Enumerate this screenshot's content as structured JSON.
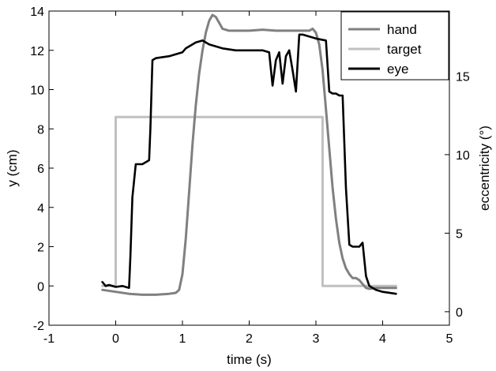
{
  "chart_data": {
    "type": "line",
    "xlabel": "time (s)",
    "ylabel": "y (cm)",
    "ylabel_right": "eccentricity (°)",
    "xlim": [
      -1,
      5
    ],
    "ylim": [
      -2,
      14
    ],
    "ylim_right": [
      -0.86,
      19.14
    ],
    "x_ticks": [
      "-1",
      "0",
      "1",
      "2",
      "3",
      "4",
      "5"
    ],
    "y_ticks": [
      "-2",
      "0",
      "2",
      "4",
      "6",
      "8",
      "10",
      "12",
      "14"
    ],
    "y_ticks_right": [
      "0",
      "5",
      "10",
      "15"
    ],
    "grid": false,
    "legend_position": "top-right",
    "series": [
      {
        "name": "hand",
        "color": "#808080",
        "axis": "left",
        "x": [
          -0.2,
          0.0,
          0.2,
          0.4,
          0.6,
          0.8,
          0.9,
          0.95,
          1.0,
          1.05,
          1.1,
          1.15,
          1.2,
          1.25,
          1.3,
          1.35,
          1.4,
          1.45,
          1.5,
          1.55,
          1.6,
          1.7,
          1.8,
          2.0,
          2.2,
          2.4,
          2.6,
          2.8,
          2.9,
          2.95,
          3.0,
          3.05,
          3.1,
          3.15,
          3.2,
          3.25,
          3.3,
          3.35,
          3.4,
          3.45,
          3.5,
          3.55,
          3.6,
          3.65,
          3.7,
          3.75,
          3.8,
          3.9,
          4.0,
          4.2
        ],
        "y": [
          -0.2,
          -0.3,
          -0.4,
          -0.45,
          -0.45,
          -0.4,
          -0.35,
          -0.2,
          0.6,
          2.4,
          4.8,
          7.2,
          9.2,
          10.8,
          12.0,
          12.9,
          13.5,
          13.8,
          13.7,
          13.4,
          13.1,
          13.0,
          13.0,
          13.0,
          13.05,
          13.0,
          13.0,
          13.0,
          13.0,
          13.1,
          12.9,
          12.3,
          11.0,
          9.0,
          7.0,
          5.0,
          3.4,
          2.2,
          1.4,
          0.9,
          0.6,
          0.4,
          0.4,
          0.3,
          0.1,
          -0.1,
          -0.15,
          -0.1,
          -0.1,
          -0.1
        ]
      },
      {
        "name": "target",
        "color": "#c0c0c0",
        "axis": "left",
        "x": [
          -0.2,
          0.0,
          0.0,
          3.1,
          3.1,
          4.2
        ],
        "y": [
          0.0,
          0.0,
          8.6,
          8.6,
          0.0,
          0.0
        ]
      },
      {
        "name": "eye",
        "color": "#000000",
        "axis": "left",
        "x": [
          -0.2,
          -0.15,
          -0.1,
          0.0,
          0.1,
          0.2,
          0.22,
          0.25,
          0.3,
          0.4,
          0.45,
          0.5,
          0.52,
          0.55,
          0.6,
          0.8,
          1.0,
          1.05,
          1.1,
          1.2,
          1.3,
          1.4,
          1.6,
          1.8,
          2.0,
          2.2,
          2.3,
          2.35,
          2.4,
          2.45,
          2.5,
          2.55,
          2.6,
          2.65,
          2.7,
          2.75,
          2.8,
          3.0,
          3.15,
          3.2,
          3.25,
          3.3,
          3.35,
          3.4,
          3.45,
          3.5,
          3.55,
          3.6,
          3.65,
          3.7,
          3.75,
          3.8,
          3.85,
          3.9,
          4.0,
          4.2
        ],
        "y": [
          0.2,
          0.0,
          0.05,
          -0.05,
          0.0,
          -0.1,
          1.5,
          4.5,
          6.2,
          6.2,
          6.3,
          6.4,
          8.0,
          11.5,
          11.6,
          11.7,
          11.9,
          12.1,
          12.2,
          12.4,
          12.5,
          12.3,
          12.1,
          12.0,
          12.0,
          12.0,
          11.9,
          10.2,
          11.5,
          11.9,
          10.3,
          11.7,
          12.0,
          11.0,
          9.9,
          12.8,
          12.8,
          12.6,
          12.5,
          9.9,
          9.8,
          9.8,
          9.7,
          9.7,
          5.0,
          2.1,
          2.0,
          2.0,
          2.0,
          2.2,
          0.5,
          0.0,
          -0.1,
          -0.2,
          -0.3,
          -0.4
        ],
        "y_axis_note": "right"
      }
    ]
  }
}
